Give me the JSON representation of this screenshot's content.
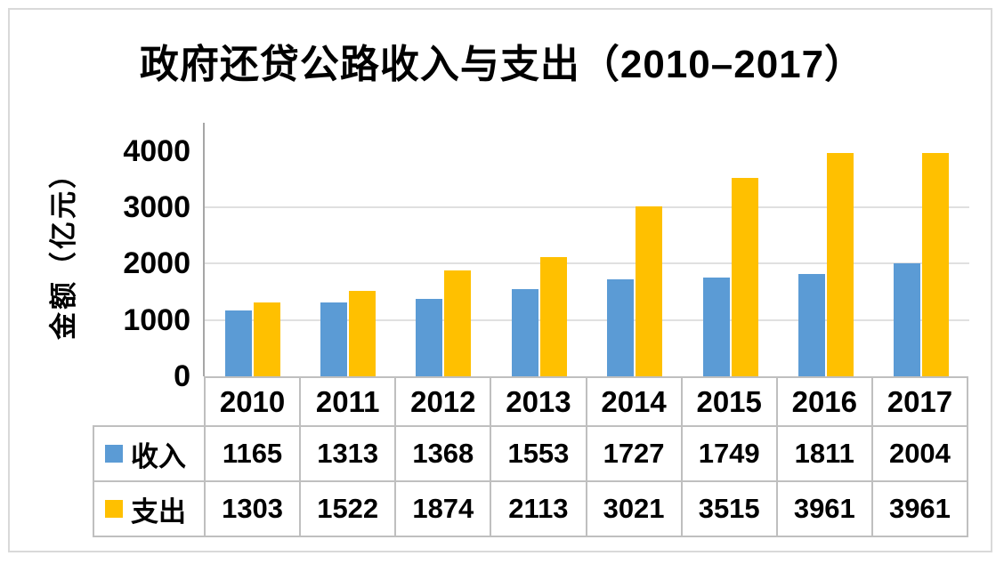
{
  "window": {
    "background": "#FFFFFF",
    "frame_border_color": "#D9D9D9"
  },
  "chart_data": {
    "type": "bar",
    "title": "政府还贷公路收入与支出（2010–2017）",
    "ylabel": "金额（亿元）",
    "xlabel": "",
    "categories": [
      "2010",
      "2011",
      "2012",
      "2013",
      "2014",
      "2015",
      "2016",
      "2017"
    ],
    "series": [
      {
        "id": "income",
        "name": "收入",
        "color": "#5B9BD5",
        "values": [
          1165,
          1313,
          1368,
          1553,
          1727,
          1749,
          1811,
          2004
        ]
      },
      {
        "id": "expense",
        "name": "支出",
        "color": "#FFC000",
        "values": [
          1303,
          1522,
          1874,
          2113,
          3021,
          3515,
          3961,
          3961
        ]
      }
    ],
    "ylim": [
      0,
      4500
    ],
    "ytick_interval": 1000,
    "ytick_labels": [
      "0",
      "1000",
      "2000",
      "3000",
      "4000"
    ],
    "grid": true,
    "gridline_color": "#E0E0E0",
    "axis_line_color": "#A6A6A6",
    "table_border_color": "#BFBFBF",
    "legend_position": "data-table-left"
  }
}
